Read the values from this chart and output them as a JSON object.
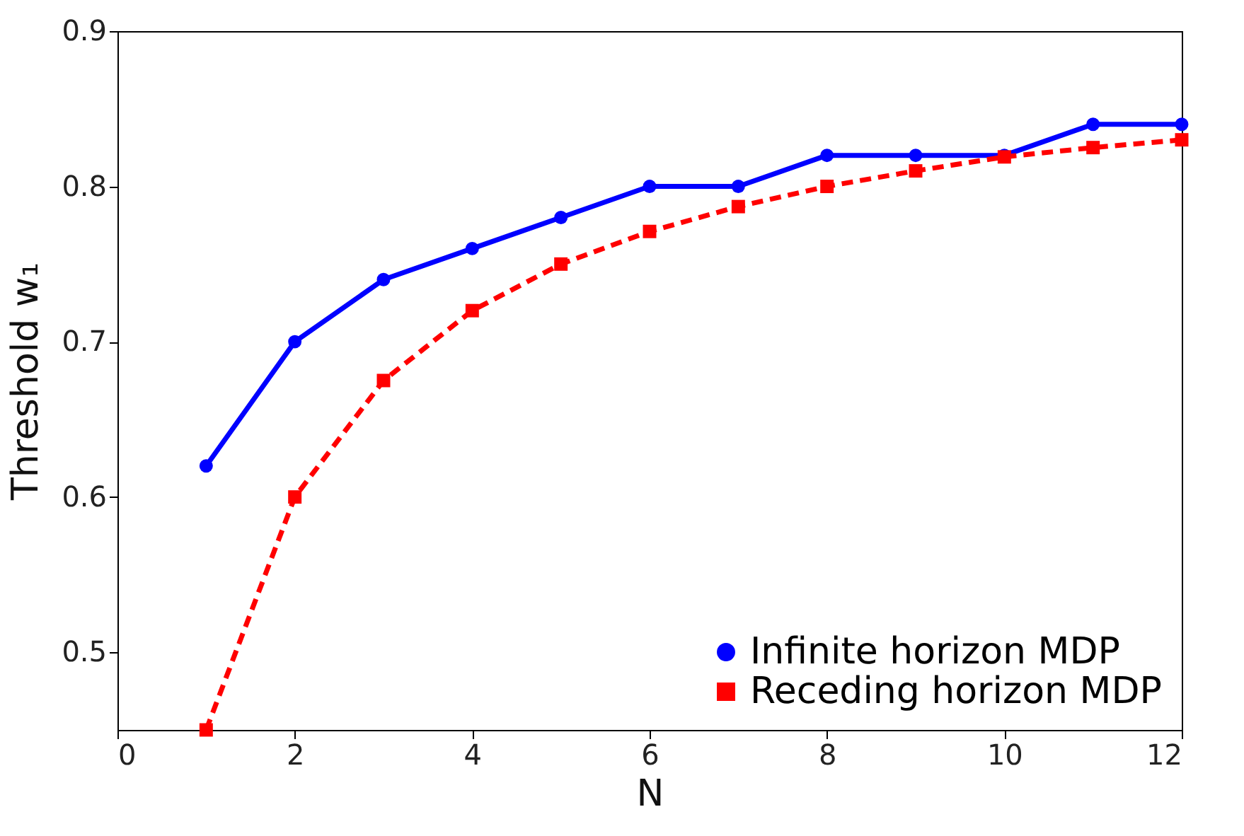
{
  "chart_data": {
    "type": "line",
    "xlabel": "N",
    "ylabel": "Threshold w₁",
    "x": [
      1,
      2,
      3,
      4,
      5,
      6,
      7,
      8,
      9,
      10,
      11,
      12
    ],
    "series": [
      {
        "name": "Infinite horizon MDP",
        "color": "#0000ff",
        "marker": "circle",
        "line_style": "solid",
        "values": [
          0.62,
          0.7,
          0.74,
          0.76,
          0.78,
          0.8,
          0.8,
          0.82,
          0.82,
          0.82,
          0.84,
          0.84
        ]
      },
      {
        "name": "Receding horizon MDP",
        "color": "#ff0000",
        "marker": "square",
        "line_style": "dashed",
        "values": [
          0.45,
          0.6,
          0.675,
          0.72,
          0.75,
          0.771,
          0.787,
          0.8,
          0.81,
          0.819,
          0.825,
          0.83
        ]
      }
    ],
    "xlim": [
      0,
      12
    ],
    "xticks": [
      0,
      2,
      4,
      6,
      8,
      10,
      12
    ],
    "ylim": [
      0.45,
      0.9
    ],
    "yticks": [
      0.5,
      0.6,
      0.7,
      0.8,
      0.9
    ],
    "grid": false,
    "legend": "bottom right"
  }
}
